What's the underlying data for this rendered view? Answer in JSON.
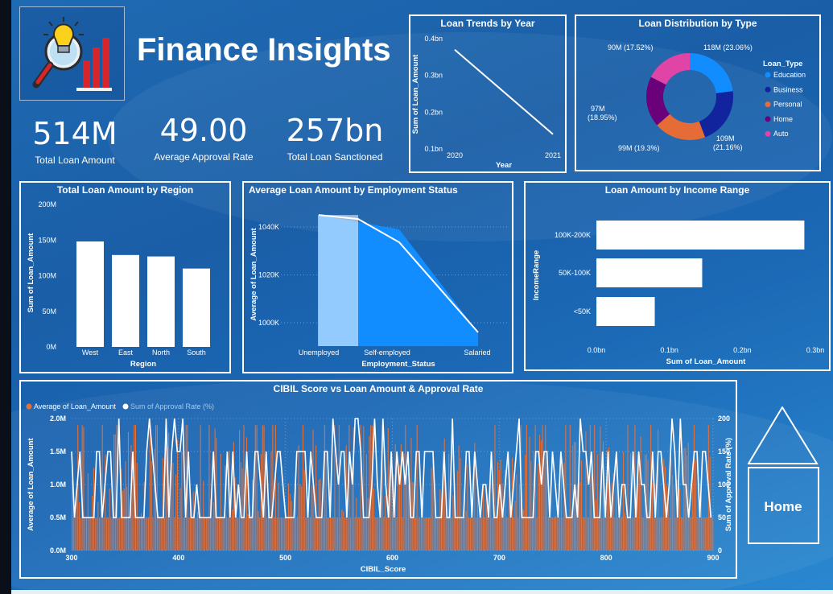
{
  "header": {
    "title": "Finance Insights",
    "logo_icon": "lightbulb-magnifier-chart-icon"
  },
  "kpis": [
    {
      "value": "514M",
      "label": "Total Loan Amount"
    },
    {
      "value": "49.00",
      "label": "Average Approval Rate"
    },
    {
      "value": "257bn",
      "label": "Total Loan Sanctioned"
    }
  ],
  "nav": {
    "home_label": "Home",
    "home_icon": "house-icon"
  },
  "colors": {
    "background": "#1b64ad",
    "accent": "#ffffff",
    "orange": "#e2703a"
  },
  "chart_data": [
    {
      "id": "loan-trends",
      "type": "line",
      "title": "Loan Trends by Year",
      "xlabel": "Year",
      "ylabel": "Sum of Loan_Amount",
      "x": [
        2020,
        2021
      ],
      "values": [
        0.37,
        0.14
      ],
      "unit": "bn",
      "ylim": [
        0.1,
        0.4
      ],
      "yticks": [
        "0.1bn",
        "0.2bn",
        "0.3bn",
        "0.4bn"
      ]
    },
    {
      "id": "loan-distribution",
      "type": "pie",
      "title": "Loan Distribution by Type",
      "legend_title": "Loan_Type",
      "slices": [
        {
          "name": "Education",
          "value": 118,
          "label": "118M (23.06%)",
          "color": "#118dff"
        },
        {
          "name": "Business",
          "value": 109,
          "label": "109M (21.16%)",
          "color": "#12239e"
        },
        {
          "name": "Personal",
          "value": 99,
          "label": "99M (19.3%)",
          "color": "#e66c37"
        },
        {
          "name": "Home",
          "value": 97,
          "label": "97M (18.95%)",
          "color": "#6b007b"
        },
        {
          "name": "Auto",
          "value": 90,
          "label": "90M (17.52%)",
          "color": "#e044a7"
        }
      ]
    },
    {
      "id": "region",
      "type": "bar",
      "title": "Total Loan Amount by Region",
      "xlabel": "Region",
      "ylabel": "Sum of Loan_Amount",
      "categories": [
        "West",
        "East",
        "North",
        "South"
      ],
      "values": [
        148,
        129,
        127,
        110
      ],
      "ylim": [
        0,
        200
      ],
      "yticks": [
        "0M",
        "50M",
        "100M",
        "150M",
        "200M"
      ]
    },
    {
      "id": "employment",
      "type": "area",
      "title": "Average Loan Amount by Employment Status",
      "xlabel": "Employment_Status",
      "ylabel": "Average of Loan_Amount",
      "categories": [
        "Unemployed",
        "Self-employed",
        "Salaried"
      ],
      "values": [
        1045,
        1039,
        996
      ],
      "ylim": [
        993,
        1046
      ],
      "yticks": [
        "1000K",
        "1020K",
        "1040K"
      ]
    },
    {
      "id": "income",
      "type": "bar",
      "orientation": "horizontal",
      "title": "Loan Amount by Income Range",
      "xlabel": "Sum of Loan_Amount",
      "ylabel": "IncomeRange",
      "categories": [
        "100K-200K",
        "50K-100K",
        "<50K"
      ],
      "values": [
        0.285,
        0.145,
        0.08
      ],
      "xlim": [
        0,
        0.3
      ],
      "xticks": [
        "0.0bn",
        "0.1bn",
        "0.2bn",
        "0.3bn"
      ]
    },
    {
      "id": "cibil",
      "type": "bar",
      "combo": "bar+line",
      "title": "CIBIL Score vs Loan Amount & Approval Rate",
      "xlabel": "CIBIL_Score",
      "ylabel": "Average of Loan_Amount",
      "y2label": "Sum of Approval Rate (%)",
      "series": [
        {
          "name": "Average of Loan_Amount",
          "color": "#e2703a",
          "type": "bar",
          "pattern": "dense bars per CIBIL score 300-900, mostly 0.5M-1.5M, peaks near 1.9M"
        },
        {
          "name": "Sum of Approval Rate (%)",
          "color": "#ffffff",
          "type": "line",
          "pattern": "oscillates between 50 and 150, peaks at 200"
        }
      ],
      "xlim": [
        300,
        900
      ],
      "xticks": [
        "300",
        "400",
        "500",
        "600",
        "700",
        "800",
        "900"
      ],
      "ylim": [
        0,
        2.0
      ],
      "yticks": [
        "0.0M",
        "0.5M",
        "1.0M",
        "1.5M",
        "2.0M"
      ],
      "y2lim": [
        0,
        200
      ],
      "y2ticks": [
        "0",
        "50",
        "100",
        "150",
        "200"
      ]
    }
  ]
}
